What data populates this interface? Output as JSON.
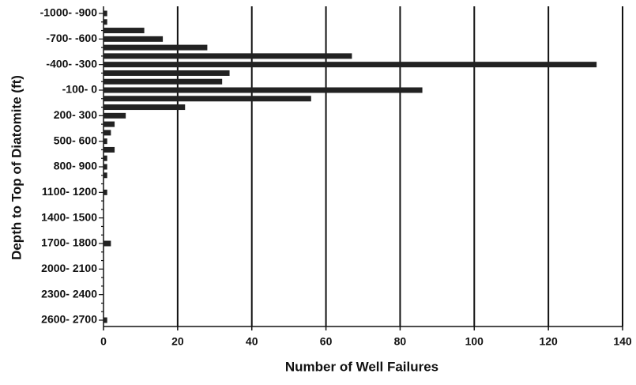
{
  "chart_data": {
    "type": "bar",
    "orientation": "horizontal",
    "x_label": "Number of Well Failures",
    "y_label": "Depth to Top of Diatomite (ft)",
    "categories": [
      "-1000- -900",
      null,
      null,
      "-700- -600",
      null,
      null,
      "-400- -300",
      null,
      null,
      "-100- 0",
      null,
      null,
      "200- 300",
      null,
      null,
      "500- 600",
      null,
      null,
      "800- 900",
      null,
      null,
      "1100- 1200",
      null,
      null,
      "1400- 1500",
      null,
      null,
      "1700- 1800",
      null,
      null,
      "2000- 2100",
      null,
      null,
      "2300- 2400",
      null,
      null,
      "2600- 2700"
    ],
    "values": [
      1,
      1,
      11,
      16,
      28,
      67,
      133,
      34,
      32,
      86,
      56,
      22,
      6,
      3,
      2,
      1,
      3,
      1,
      1,
      1,
      0,
      1,
      0,
      0,
      0,
      0,
      0,
      2,
      0,
      0,
      0,
      0,
      0,
      0,
      0,
      0,
      1
    ],
    "color": "#222222",
    "xlim": [
      0,
      140
    ],
    "xticks": [
      0,
      20,
      40,
      60,
      80,
      100,
      120,
      140
    ],
    "grid": true
  }
}
